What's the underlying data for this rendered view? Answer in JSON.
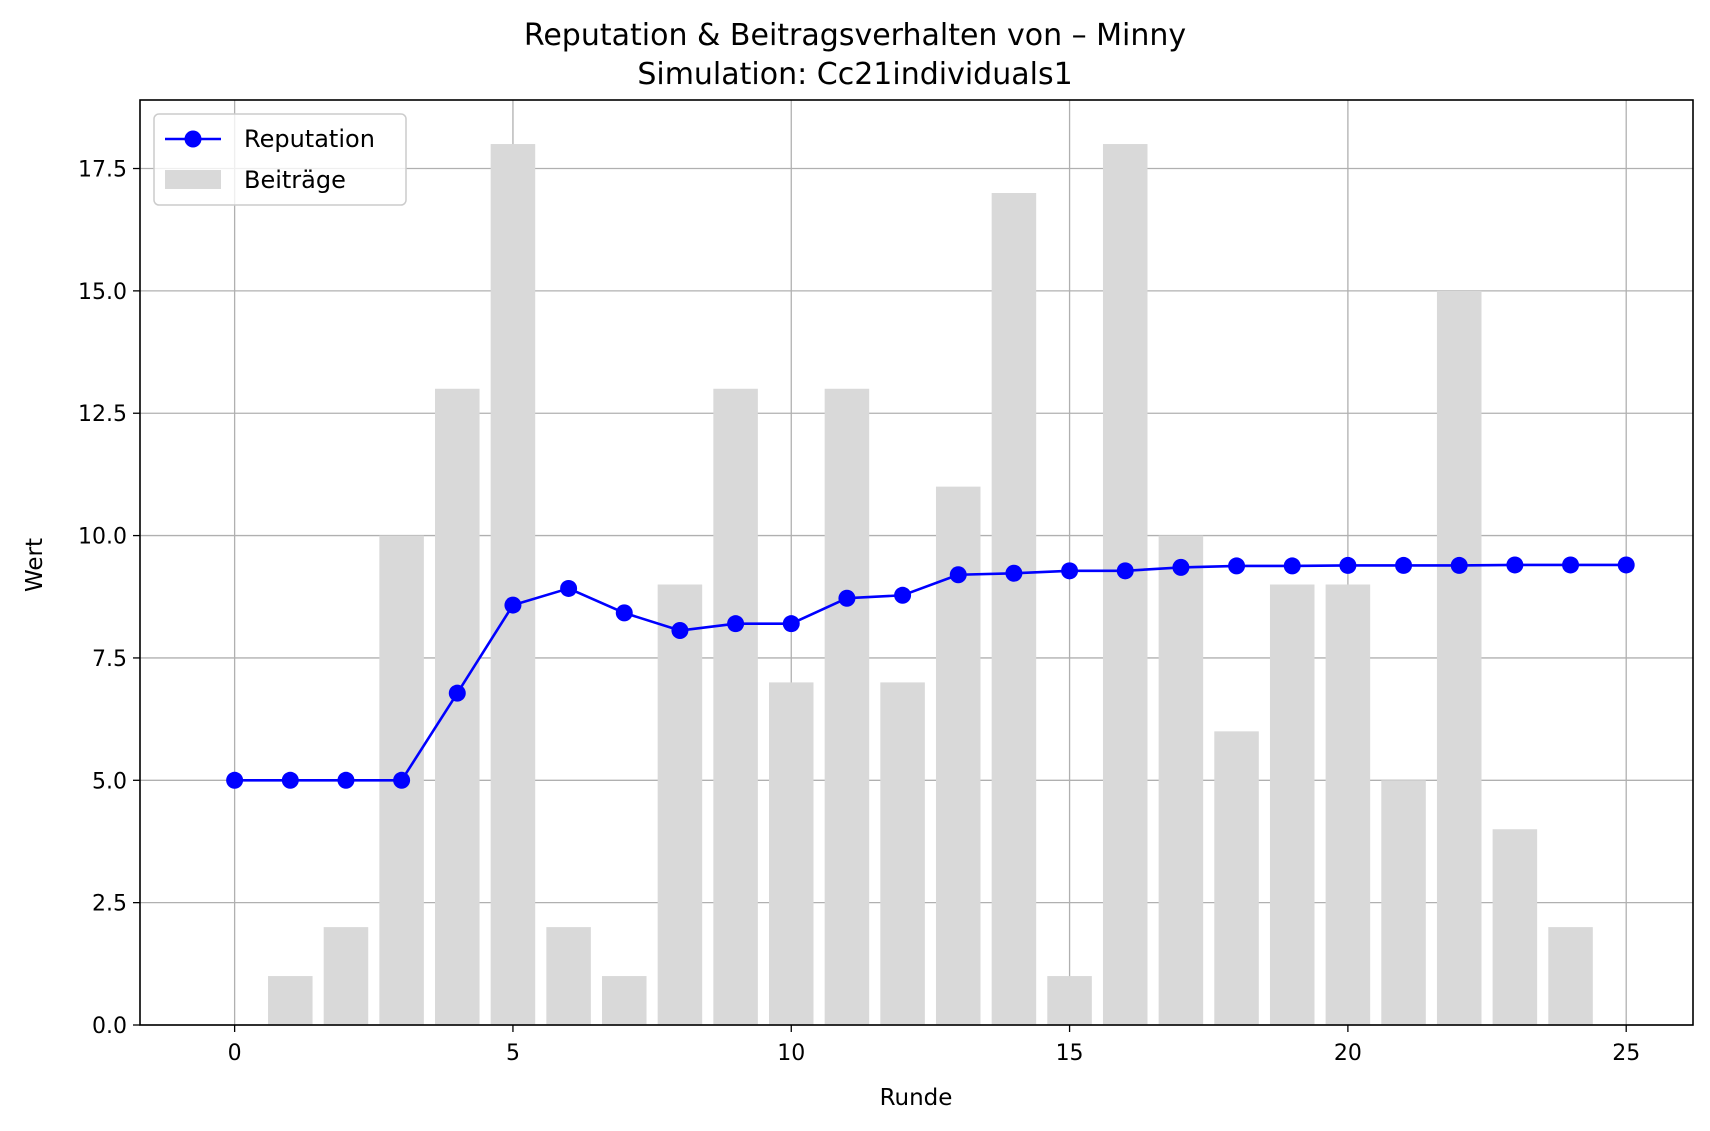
{
  "chart_data": {
    "type": "bar",
    "title": "Reputation & Beitragsverhalten von – Minny",
    "subtitle": "Simulation: Cc21individuals1",
    "xlabel": "Runde",
    "ylabel": "Wert",
    "x": [
      0,
      1,
      2,
      3,
      4,
      5,
      6,
      7,
      8,
      9,
      10,
      11,
      12,
      13,
      14,
      15,
      16,
      17,
      18,
      19,
      20,
      21,
      22,
      23,
      24,
      25
    ],
    "xlim": [
      -1.7,
      26.2
    ],
    "ylim": [
      0,
      18.9
    ],
    "xticks": [
      0,
      5,
      10,
      15,
      20,
      25
    ],
    "xtick_labels": [
      "0",
      "5",
      "10",
      "15",
      "20",
      "25"
    ],
    "yticks": [
      0,
      2.5,
      5,
      7.5,
      10,
      12.5,
      15,
      17.5
    ],
    "ytick_labels": [
      "0.0",
      "2.5",
      "5.0",
      "7.5",
      "10.0",
      "12.5",
      "15.0",
      "17.5"
    ],
    "grid": true,
    "legend_position": "top-left",
    "series": [
      {
        "name": "Reputation",
        "kind": "line",
        "marker": "circle",
        "color": "#0000ff",
        "values": [
          5.0,
          5.0,
          5.0,
          5.0,
          6.78,
          8.58,
          8.92,
          8.42,
          8.06,
          8.2,
          8.2,
          8.72,
          8.78,
          9.2,
          9.23,
          9.28,
          9.28,
          9.35,
          9.38,
          9.38,
          9.39,
          9.39,
          9.39,
          9.4,
          9.4,
          9.4
        ]
      },
      {
        "name": "Beiträge",
        "kind": "bar",
        "color": "#d9d9d9",
        "values": [
          0,
          1,
          2,
          10,
          13,
          18,
          2,
          1,
          9,
          13,
          7,
          13,
          7,
          11,
          17,
          1,
          18,
          10,
          6,
          9,
          9,
          5,
          15,
          4,
          2,
          0
        ]
      }
    ]
  }
}
